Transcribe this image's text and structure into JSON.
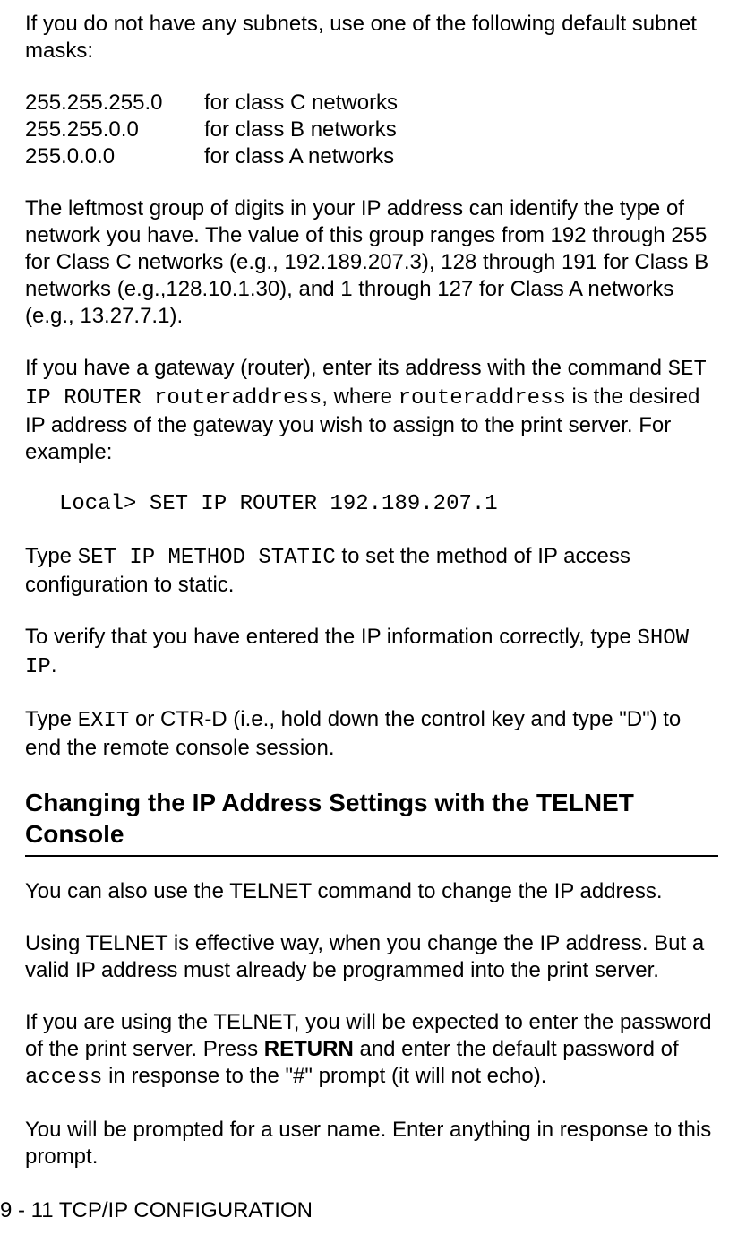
{
  "p1": "If you do not have any subnets, use one of the following default subnet masks:",
  "subnets": [
    {
      "mask": "255.255.255.0",
      "desc": "for class C networks"
    },
    {
      "mask": "255.255.0.0",
      "desc": "for class B networks"
    },
    {
      "mask": "255.0.0.0",
      "desc": "for class A networks"
    }
  ],
  "p2": "The leftmost group of digits in your IP address can identify the type of network you have. The value of this group ranges from 192 through 255 for Class C networks (e.g., 192.189.207.3), 128 through 191 for Class B networks (e.g.,128.10.1.30), and 1 through 127 for Class A networks (e.g., 13.27.7.1).",
  "p3a": "If you have a gateway (router), enter its address with the command ",
  "p3b_code": "SET IP ROUTER routeraddress",
  "p3c": ", where ",
  "p3d_code": "routeraddress",
  "p3e": " is the desired IP address of the gateway you wish to assign to the print server. For example:",
  "codeline1": "Local> SET IP ROUTER 192.189.207.1",
  "p4a": "Type ",
  "p4b_code": "SET IP METHOD STATIC",
  "p4c": " to set the method of IP access configuration to static.",
  "p5a": "To verify that you have entered the IP information correctly, type ",
  "p5b_code": "SHOW IP",
  "p5c": ".",
  "p6a": "Type ",
  "p6b_code": "EXIT",
  "p6c": " or CTR-D (i.e., hold down the control key and type \"D\") to end the remote console session.",
  "heading1": "Changing the IP Address Settings with the TELNET Console",
  "p7": "You can also use the TELNET command to change the IP address.",
  "p8": "Using TELNET is effective way, when you change the IP address. But a valid IP address must already be programmed into the print server.",
  "p9a": "If you are using the TELNET, you will be expected to enter the password of the print server. Press ",
  "p9b_bold": "RETURN",
  "p9c": " and enter the default password of ",
  "p9d_code": "access",
  "p9e": " in response to the \"#\" prompt (it will not echo).",
  "p10": "You will be prompted for a user name. Enter anything in response to this prompt.",
  "footer": "9 - 11 TCP/IP CONFIGURATION"
}
